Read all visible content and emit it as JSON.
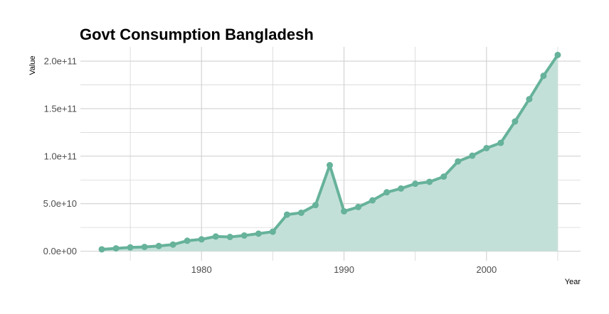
{
  "chart_data": {
    "type": "area",
    "title": "Govt Consumption Bangladesh",
    "xlabel": "Year",
    "ylabel": "Value",
    "xlim": [
      1971.5,
      2006.6
    ],
    "ylim": [
      -10000000000,
      215000000000
    ],
    "x_ticks": [
      1980,
      1990,
      2000
    ],
    "x_tick_labels": [
      "1980",
      "1990",
      "2000"
    ],
    "y_ticks": [
      0,
      50000000000,
      100000000000,
      150000000000,
      200000000000
    ],
    "y_tick_labels": [
      "0.0e+00",
      "5.0e+10",
      "1.0e+11",
      "1.5e+11",
      "2.0e+11"
    ],
    "grid": true,
    "colors": {
      "line": "#66b29a",
      "fill": "#c3e0d8",
      "grid": "#d0d0d0"
    },
    "x": [
      1973,
      1974,
      1975,
      1976,
      1977,
      1978,
      1979,
      1980,
      1981,
      1982,
      1983,
      1984,
      1985,
      1986,
      1987,
      1988,
      1989,
      1990,
      1991,
      1992,
      1993,
      1994,
      1995,
      1996,
      1997,
      1998,
      1999,
      2000,
      2001,
      2002,
      2003,
      2004,
      2005
    ],
    "values": [
      2000000000,
      3000000000,
      4000000000,
      4500000000,
      5500000000,
      7000000000,
      11000000000,
      12500000000,
      15500000000,
      15000000000,
      16500000000,
      18500000000,
      20500000000,
      38500000000,
      40500000000,
      48500000000,
      90500000000,
      42000000000,
      46500000000,
      53500000000,
      62000000000,
      66000000000,
      71000000000,
      73000000000,
      78500000000,
      94500000000,
      100500000000,
      108500000000,
      114000000000,
      136500000000,
      160000000000,
      184500000000,
      206500000000
    ]
  }
}
